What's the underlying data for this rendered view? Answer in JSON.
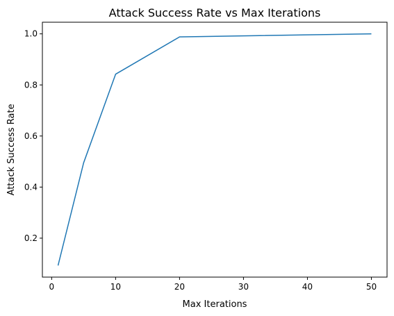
{
  "chart_data": {
    "type": "line",
    "title": "Attack Success Rate vs Max Iterations",
    "xlabel": "Max Iterations",
    "ylabel": "Attack Success Rate",
    "xlim": [
      -1.45,
      52.45
    ],
    "ylim": [
      0.0475,
      1.0455
    ],
    "xticks": [
      0,
      10,
      20,
      30,
      40,
      50
    ],
    "yticks": [
      0.2,
      0.4,
      0.6,
      0.8,
      1.0
    ],
    "xtick_labels": [
      "0",
      "10",
      "20",
      "30",
      "40",
      "50"
    ],
    "ytick_labels": [
      "0.2",
      "0.4",
      "0.6",
      "0.8",
      "1.0"
    ],
    "grid": false,
    "series": [
      {
        "color": "#1f77b4",
        "x": [
          1,
          5,
          10,
          20,
          50
        ],
        "y": [
          0.093,
          0.495,
          0.842,
          0.988,
          1.0
        ]
      }
    ]
  }
}
